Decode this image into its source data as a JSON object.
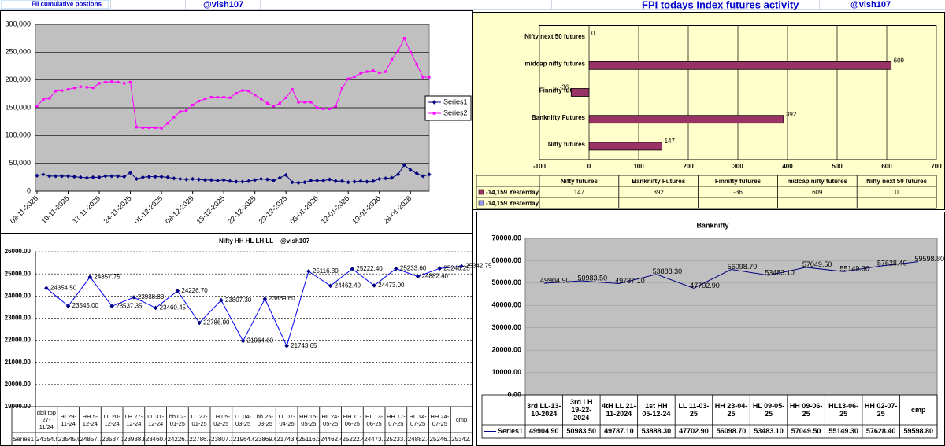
{
  "header": {
    "left_title": "FII cumulative postions",
    "left_handle": "@vish107",
    "right_title": "FPI todays Index futures activity",
    "right_handle": "@vish107"
  },
  "chart_data": [
    {
      "type": "line",
      "categories": [
        "03-11-2025",
        null,
        null,
        null,
        null,
        "10-11-2025",
        null,
        null,
        null,
        null,
        "17-11-2025",
        null,
        null,
        null,
        null,
        "24-11-2025",
        null,
        null,
        null,
        null,
        "01-12-2025",
        null,
        null,
        null,
        null,
        "08-12-2025",
        null,
        null,
        null,
        null,
        "15-12-2025",
        null,
        null,
        null,
        null,
        "22-12-2025",
        null,
        null,
        null,
        null,
        "29-12-2025",
        null,
        null,
        null,
        null,
        "05-01-2026",
        null,
        null,
        null,
        null,
        "12-01-2026",
        null,
        null,
        null,
        null,
        "19-01-2026",
        null,
        null,
        null,
        null,
        "26-01-2026",
        null,
        null,
        null
      ],
      "series": [
        {
          "name": "Series1",
          "color": "#000080",
          "marker": "diamond",
          "values": [
            28000,
            30000,
            27000,
            27000,
            27000,
            27000,
            26000,
            25000,
            24000,
            25000,
            25000,
            27000,
            27000,
            27000,
            26000,
            33000,
            22000,
            25000,
            26000,
            26000,
            26000,
            25000,
            23000,
            22000,
            21000,
            22000,
            21000,
            20000,
            20000,
            19000,
            20000,
            18000,
            17000,
            17000,
            18000,
            20000,
            22000,
            21000,
            19000,
            24000,
            29000,
            16000,
            15000,
            16000,
            19000,
            19000,
            19000,
            21000,
            18000,
            18000,
            16000,
            17000,
            18000,
            17000,
            18000,
            22000,
            23000,
            24000,
            30000,
            47000,
            38000,
            32000,
            27000,
            30000
          ]
        },
        {
          "name": "Series2",
          "color": "#ff00ff",
          "marker": "square",
          "values": [
            153000,
            165000,
            167000,
            180000,
            181000,
            183000,
            186000,
            188000,
            187000,
            186000,
            194000,
            196000,
            197000,
            196000,
            194000,
            196000,
            115000,
            114000,
            114000,
            114000,
            113000,
            122000,
            133000,
            143000,
            145000,
            155000,
            162000,
            166000,
            169000,
            169000,
            169000,
            168000,
            176000,
            181000,
            180000,
            173000,
            166000,
            158000,
            153000,
            158000,
            168000,
            183000,
            160000,
            160000,
            160000,
            150000,
            148000,
            148000,
            153000,
            185000,
            202000,
            206000,
            212000,
            215000,
            217000,
            213000,
            215000,
            237000,
            252000,
            275000,
            250000,
            228000,
            205000,
            205000
          ]
        }
      ],
      "ylim": [
        0,
        300000
      ],
      "yticks": [
        0,
        {
          "value": 50000,
          "label": "50,000"
        },
        {
          "value": 100000,
          "label": "100,000"
        },
        {
          "value": 150000,
          "label": "150,000"
        },
        {
          "value": 200000,
          "label": "200,000"
        },
        {
          "value": 250000,
          "label": "250,000"
        },
        {
          "value": 300000,
          "label": "300,000"
        }
      ],
      "grid": true,
      "legend": "right",
      "background": "#c0c0c0"
    },
    {
      "type": "hbar",
      "categories": [
        "Nifty futures",
        "Banknifty Futures",
        "Finnifty futures",
        "midcap nifty futures",
        "Nifty next 50 futures"
      ],
      "series": [
        {
          "name": "-14,159 Yesterday",
          "color": "#993366",
          "values": [
            147,
            392,
            -36,
            609,
            0
          ]
        },
        {
          "name": "-14,159 Yesterday",
          "color": "#9999ff",
          "values": [
            null,
            null,
            null,
            null,
            null
          ]
        }
      ],
      "xlim": [
        -100,
        700
      ],
      "xticks": [
        -100,
        0,
        100,
        200,
        300,
        400,
        500,
        600,
        700
      ],
      "grid": true,
      "data_table": true,
      "background": "#ffffcc"
    },
    {
      "type": "line",
      "title": "Nifty HH HL LH LL",
      "annotation": "@vish107",
      "categories": [
        "dbll top 27-11/24",
        "HL29-11-24",
        "HH 5-12-24",
        "LL 20-12-24",
        "LH 27-12-24",
        "LL 31-12-24",
        "hh 02-01-25",
        "LL 27-01-25",
        "LH 05-02-25",
        "LL 04-03-25",
        "hh 25-03-25",
        "LL 07-04-25",
        "HH 15-05-25",
        "HL 24-05-25",
        "HH 11-06-25",
        "HL 13-06-25",
        "HH 17-07-25",
        "HL 14-07-25",
        "HH 24-07-25",
        "cmp"
      ],
      "series": [
        {
          "name": "Series1",
          "color": "#0000ff",
          "marker": "diamond",
          "values": [
            24354.5,
            23545,
            24857.75,
            23537.35,
            23938.8,
            23460.45,
            24226.7,
            22786.9,
            23807.3,
            21964.6,
            23869.6,
            21743.65,
            25116.3,
            24462.4,
            25222.4,
            24473,
            25233.6,
            24882.4,
            25246.25,
            25342.75
          ],
          "value_labels": [
            "24354.50",
            "23545.00",
            "24857.75",
            "23537.35",
            "23938.80",
            "23460.45",
            "24226.70",
            "22786.90",
            "23807.30",
            "21964.60",
            "23869.60",
            "21743.65",
            "25116.30",
            "24462.40",
            "25222.40",
            "24473.00",
            "25233.60",
            "24882.40",
            "25246.25",
            "25342.75"
          ]
        }
      ],
      "ylim": [
        19000,
        26000
      ],
      "yticks": [
        {
          "value": 19000,
          "label": "19000.00"
        },
        {
          "value": 20000,
          "label": "20000.00"
        },
        {
          "value": 21000,
          "label": "21000.00"
        },
        {
          "value": 22000,
          "label": "22000.00"
        },
        {
          "value": 23000,
          "label": "23000.00"
        },
        {
          "value": 24000,
          "label": "24000.00"
        },
        {
          "value": 25000,
          "label": "25000.00"
        },
        {
          "value": 26000,
          "label": "26000.00"
        }
      ],
      "grid": true,
      "grid_style": "dashed",
      "data_table": true
    },
    {
      "type": "line",
      "title": "Banknifty",
      "categories": [
        "3rd LL-13-10-2024",
        "3rd LH 19-22-2024",
        "4tH LL 21-11-2024",
        "1st HH 05-12-24",
        "LL 11-03-25",
        "HH 23-04-25",
        "HL 09-05-25",
        "HH 09-06-25",
        "HL13-06-25",
        "HH 02-07-25",
        "cmp"
      ],
      "series": [
        {
          "name": "Series1",
          "color": "#000080",
          "values": [
            49904.9,
            50983.5,
            49787.1,
            53888.3,
            47702.9,
            56098.7,
            53483.1,
            57049.5,
            55149.3,
            57628.4,
            59598.8
          ],
          "value_labels": [
            "49904.90",
            "50983.50",
            "49787.10",
            "53888.30",
            "47702.90",
            "56098.70",
            "53483.10",
            "57049.50",
            "55149.30",
            "57628.40",
            "59598.80"
          ]
        }
      ],
      "ylim": [
        0,
        70000
      ],
      "yticks": [
        {
          "value": 0,
          "label": "0.00"
        },
        {
          "value": 10000,
          "label": "10000.00"
        },
        {
          "value": 20000,
          "label": "20000.00"
        },
        {
          "value": 30000,
          "label": "30000.00"
        },
        {
          "value": 40000,
          "label": "40000.00"
        },
        {
          "value": 50000,
          "label": "50000.00"
        },
        {
          "value": 60000,
          "label": "60000.00"
        },
        {
          "value": 70000,
          "label": "70000.00"
        }
      ],
      "grid": true,
      "data_table": true,
      "background": "#c0c0c0"
    }
  ]
}
